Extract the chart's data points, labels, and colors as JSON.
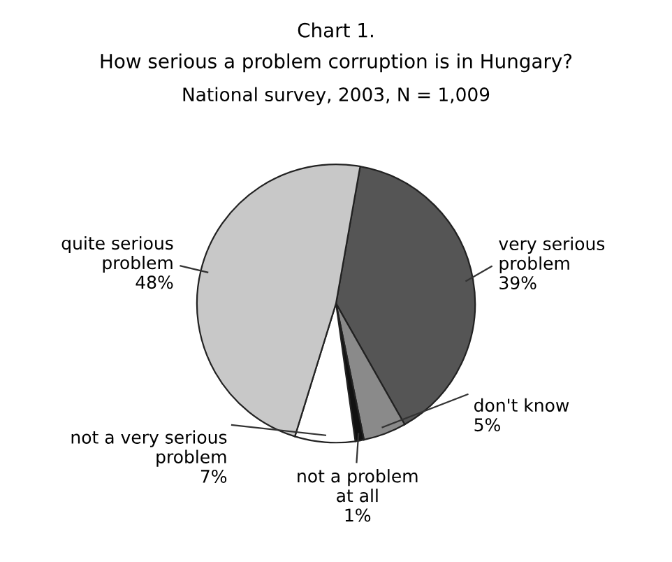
{
  "chart_data": {
    "type": "pie",
    "title": "Chart 1.",
    "subtitle": "How serious a problem corruption is in Hungary?",
    "annotations": [
      "National survey, 2003, N = 1,009"
    ],
    "categories": [
      "very serious\nproblem",
      "don't know",
      "not a problem\nat all",
      "not a very serious\nproblem",
      "quite serious\nproblem"
    ],
    "values": [
      39,
      5,
      1,
      7,
      48
    ],
    "value_labels": [
      "39%",
      "5%",
      "1%",
      "7%",
      "48%"
    ],
    "colors": [
      "#555555",
      "#8a8a8a",
      "#111111",
      "#ffffff",
      "#c8c8c8"
    ],
    "legend": false
  }
}
